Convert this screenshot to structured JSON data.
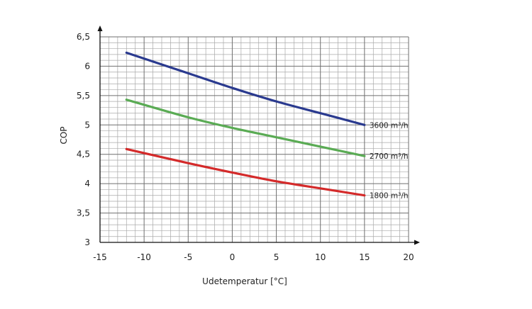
{
  "chart_data": {
    "type": "line",
    "xlabel": "Udetemperatur [°C]",
    "ylabel": "COP",
    "xlim": [
      -15,
      20
    ],
    "ylim": [
      3,
      6.5
    ],
    "x_ticks": [
      "-15",
      "-10",
      "-5",
      "0",
      "5",
      "10",
      "15",
      "20"
    ],
    "y_ticks": [
      "3",
      "3,5",
      "4",
      "4,5",
      "5",
      "5,5",
      "6",
      "6,5"
    ],
    "grid": true,
    "legend": "inline labels at right end of each line",
    "series": [
      {
        "name": "3600 m³/h",
        "color": "#2a3a8f",
        "x": [
          -12,
          -5,
          0,
          5,
          10,
          15
        ],
        "y": [
          6.23,
          5.88,
          5.63,
          5.4,
          5.2,
          5.0
        ]
      },
      {
        "name": "2700 m³/h",
        "color": "#5aab54",
        "x": [
          -12,
          -5,
          0,
          5,
          10,
          15
        ],
        "y": [
          5.43,
          5.13,
          4.95,
          4.79,
          4.63,
          4.47
        ]
      },
      {
        "name": "1800 m³/h",
        "color": "#d42a2a",
        "x": [
          -12,
          -5,
          0,
          5,
          10,
          15
        ],
        "y": [
          4.59,
          4.35,
          4.19,
          4.04,
          3.92,
          3.8
        ]
      }
    ]
  }
}
